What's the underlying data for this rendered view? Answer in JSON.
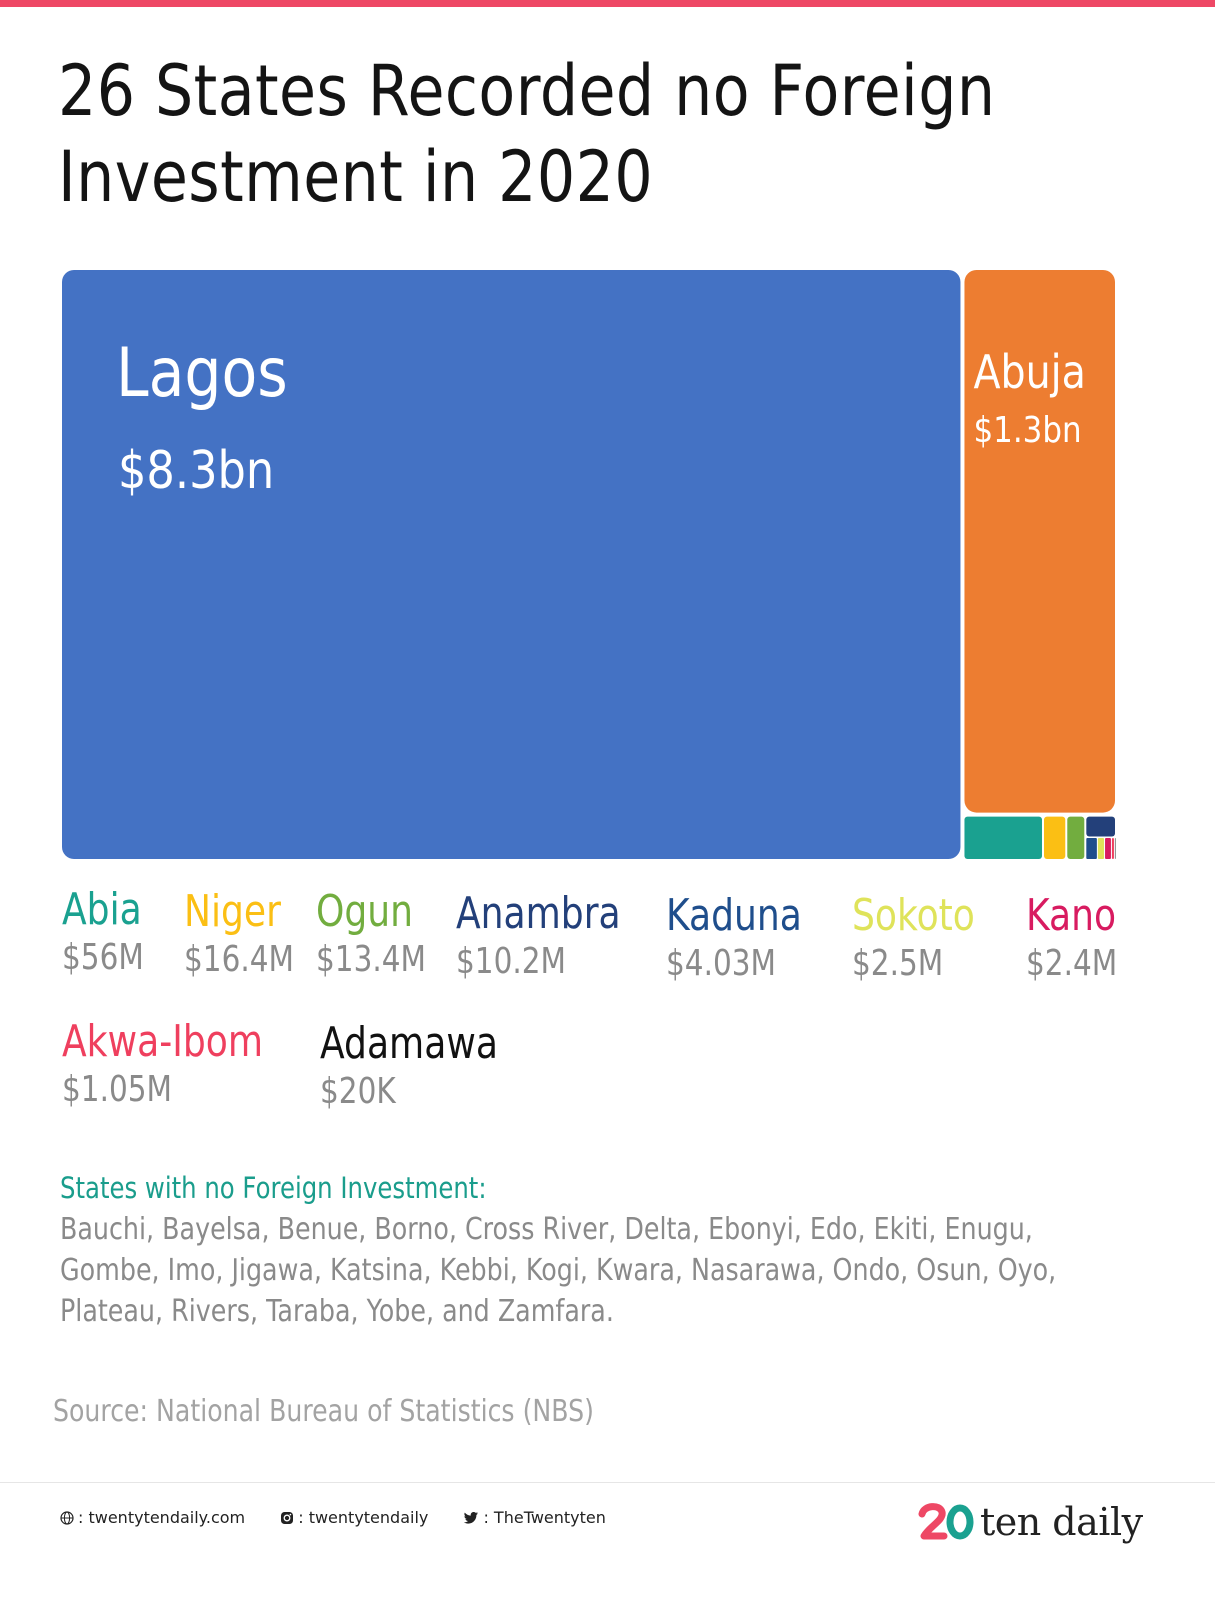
{
  "title": {
    "line1": "26 States Recorded no Foreign",
    "line2": "Investment in 2020"
  },
  "colors": {
    "top_bar": "#ee4865",
    "Lagos": "#4472c4",
    "Abuja": "#ed7d31",
    "Abia": "#1aa190",
    "Niger": "#fbbf14",
    "Ogun": "#72ad3f",
    "Anambra": "#23407a",
    "Kaduna": "#1f4e8c",
    "Sokoto": "#dfe35a",
    "Kano": "#d81b60",
    "Akwa-Ibom": "#ef3f5e",
    "Adamawa": "#111111"
  },
  "chart_data": {
    "type": "treemap",
    "unit": "USD",
    "items": [
      {
        "name": "Lagos",
        "label": "$8.3bn",
        "value": 8300000000
      },
      {
        "name": "Abuja",
        "label": "$1.3bn",
        "value": 1300000000
      },
      {
        "name": "Abia",
        "label": "$56M",
        "value": 56000000
      },
      {
        "name": "Niger",
        "label": "$16.4M",
        "value": 16400000
      },
      {
        "name": "Ogun",
        "label": "$13.4M",
        "value": 13400000
      },
      {
        "name": "Anambra",
        "label": "$10.2M",
        "value": 10200000
      },
      {
        "name": "Kaduna",
        "label": "$4.03M",
        "value": 4030000
      },
      {
        "name": "Sokoto",
        "label": "$2.5M",
        "value": 2500000
      },
      {
        "name": "Kano",
        "label": "$2.4M",
        "value": 2400000
      },
      {
        "name": "Akwa-Ibom",
        "label": "$1.05M",
        "value": 1050000
      },
      {
        "name": "Adamawa",
        "label": "$20K",
        "value": 20000
      }
    ]
  },
  "legend": [
    {
      "name": "Abia",
      "value": "$56M"
    },
    {
      "name": "Niger",
      "value": "$16.4M"
    },
    {
      "name": "Ogun",
      "value": "$13.4M"
    },
    {
      "name": "Anambra",
      "value": "$10.2M"
    },
    {
      "name": "Kaduna",
      "value": "$4.03M"
    },
    {
      "name": "Sokoto",
      "value": "$2.5M"
    },
    {
      "name": "Kano",
      "value": "$2.4M"
    },
    {
      "name": "Akwa-Ibom",
      "value": "$1.05M"
    },
    {
      "name": "Adamawa",
      "value": "$20K"
    }
  ],
  "no_investment": {
    "heading": "States with no Foreign Investment:",
    "list": "Bauchi, Bayelsa, Benue, Borno, Cross River, Delta, Ebonyi, Edo, Ekiti, Enugu, Gombe, Imo, Jigawa, Katsina, Kebbi, Kogi, Kwara, Nasarawa, Ondo, Osun, Oyo, Plateau, Rivers, Taraba, Yobe, and Zamfara."
  },
  "source": "Source: National Bureau of Statistics (NBS)",
  "footer": {
    "website": ": twentytendaily.com",
    "instagram": ": twentytendaily",
    "twitter": ": TheTwentyten",
    "logo_text": "ten daily",
    "website_icon": "globe-icon",
    "instagram_icon": "instagram-icon",
    "twitter_icon": "twitter-icon"
  }
}
